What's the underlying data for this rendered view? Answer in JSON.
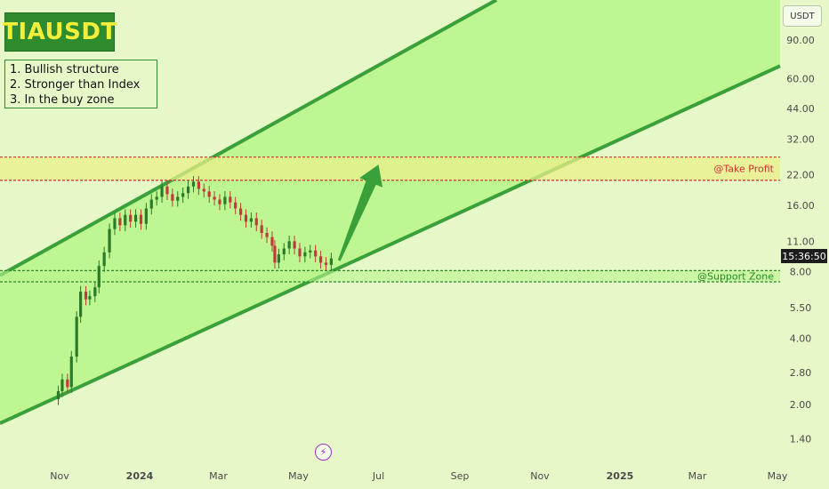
{
  "header": {
    "symbol": "TIAUSDT"
  },
  "notes": [
    "1. Bullish structure",
    "2. Stronger than Index",
    "3. In the buy zone"
  ],
  "currency_label": "USDT",
  "price_timer": "15:36:50",
  "flash_icon": "lightning-icon",
  "colors": {
    "background": "#e6f7c8",
    "channel_fill": "#b9f58c",
    "channel_line": "#3aa03a",
    "take_profit_fill": "#e9ef8a",
    "take_profit_line": "#d03030",
    "support_fill": "#b9f58c",
    "support_line": "#2a8a2a",
    "bull_candle": "#2a7a2a",
    "bear_candle": "#c03a3a",
    "arrow": "#3aa03a",
    "title_bg": "#2e8b2e",
    "title_text": "#f2ef3a"
  },
  "chart_data": {
    "type": "line",
    "y_scale": "log",
    "y_ticks": [
      90,
      60,
      44,
      32,
      22,
      16,
      11,
      8,
      5.5,
      4,
      2.8,
      2,
      1.4
    ],
    "y_tick_labels": [
      "90.00",
      "60.00",
      "44.00",
      "32.00",
      "22.00",
      "16.00",
      "11.00",
      "8.00",
      "5.50",
      "4.00",
      "2.80",
      "2.00",
      "1.40"
    ],
    "x_ticks": [
      "Nov",
      "2024",
      "Mar",
      "May",
      "Jul",
      "Sep",
      "Nov",
      "2025",
      "Mar",
      "May"
    ],
    "x_tick_dates": [
      "2023-11-01",
      "2024-01-01",
      "2024-03-01",
      "2024-05-01",
      "2024-07-01",
      "2024-09-01",
      "2024-11-01",
      "2025-01-01",
      "2025-03-01",
      "2025-05-01"
    ],
    "zones": [
      {
        "label": "@Take Profit",
        "upper": 26.5,
        "lower": 20.8
      },
      {
        "label": "@Support Zone",
        "upper": 8.1,
        "lower": 7.2
      }
    ],
    "channel": {
      "upper_start": {
        "date": "2023-10-01",
        "price": 8.6
      },
      "upper_end": {
        "date": "2024-10-11",
        "price": 150
      },
      "lower_start": {
        "date": "2023-10-01",
        "price": 1.8
      },
      "lower_end": {
        "date": "2025-05-15",
        "price": 74
      }
    },
    "arrow": {
      "from": {
        "date": "2024-06-01",
        "price": 9.0
      },
      "to": {
        "date": "2024-07-01",
        "price": 24.5
      }
    },
    "price_series": {
      "dates": [
        "2023-10-31",
        "2023-11-03",
        "2023-11-07",
        "2023-11-10",
        "2023-11-14",
        "2023-11-17",
        "2023-11-21",
        "2023-11-24",
        "2023-11-28",
        "2023-12-01",
        "2023-12-05",
        "2023-12-09",
        "2023-12-13",
        "2023-12-17",
        "2023-12-21",
        "2023-12-25",
        "2023-12-29",
        "2024-01-02",
        "2024-01-06",
        "2024-01-10",
        "2024-01-14",
        "2024-01-18",
        "2024-01-22",
        "2024-01-26",
        "2024-01-30",
        "2024-02-03",
        "2024-02-07",
        "2024-02-11",
        "2024-02-15",
        "2024-02-19",
        "2024-02-23",
        "2024-02-27",
        "2024-03-02",
        "2024-03-06",
        "2024-03-10",
        "2024-03-14",
        "2024-03-18",
        "2024-03-22",
        "2024-03-26",
        "2024-03-30",
        "2024-04-03",
        "2024-04-07",
        "2024-04-11",
        "2024-04-13",
        "2024-04-16",
        "2024-04-20",
        "2024-04-24",
        "2024-04-28",
        "2024-05-02",
        "2024-05-06",
        "2024-05-10",
        "2024-05-14",
        "2024-05-18",
        "2024-05-22",
        "2024-05-26"
      ],
      "close": [
        2.3,
        2.6,
        2.4,
        3.3,
        5.0,
        6.5,
        6.0,
        6.2,
        6.8,
        8.5,
        9.8,
        12.5,
        14.0,
        13.0,
        14.5,
        13.5,
        14.5,
        13.2,
        15.5,
        17.0,
        17.5,
        19.5,
        18.0,
        16.8,
        17.5,
        18.2,
        19.5,
        20.5,
        19.0,
        18.5,
        17.5,
        17.0,
        16.2,
        17.5,
        16.5,
        15.5,
        14.5,
        13.5,
        14.0,
        13.0,
        12.0,
        11.5,
        10.5,
        8.8,
        9.6,
        10.2,
        11.0,
        10.2,
        9.4,
        9.8,
        10.0,
        9.4,
        8.8,
        8.6,
        9.2
      ]
    }
  }
}
